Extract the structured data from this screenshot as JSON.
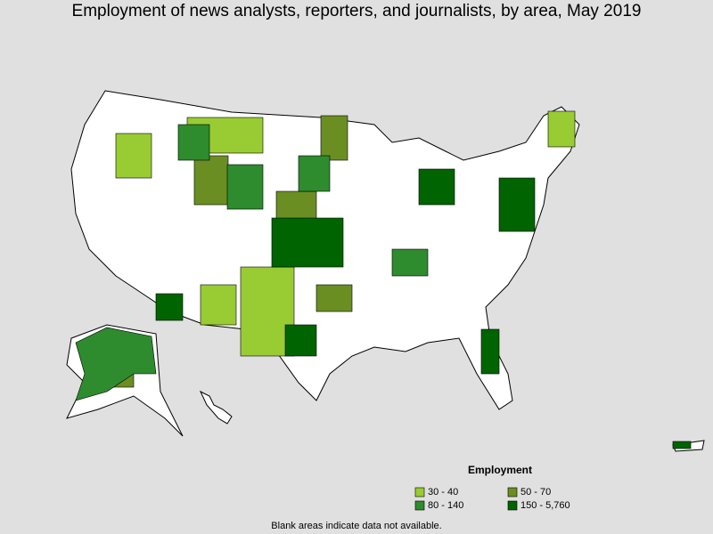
{
  "title": "Employment of news analysts, reporters, and journalists, by area, May 2019",
  "legend": {
    "title": "Employment",
    "items": [
      {
        "label": "30 - 40",
        "color": "#99cc33"
      },
      {
        "label": "50 - 70",
        "color": "#6b8e23"
      },
      {
        "label": "80 - 140",
        "color": "#2e8b2e"
      },
      {
        "label": "150 - 5,760",
        "color": "#006400"
      }
    ]
  },
  "footnote": "Blank areas indicate data not available."
}
